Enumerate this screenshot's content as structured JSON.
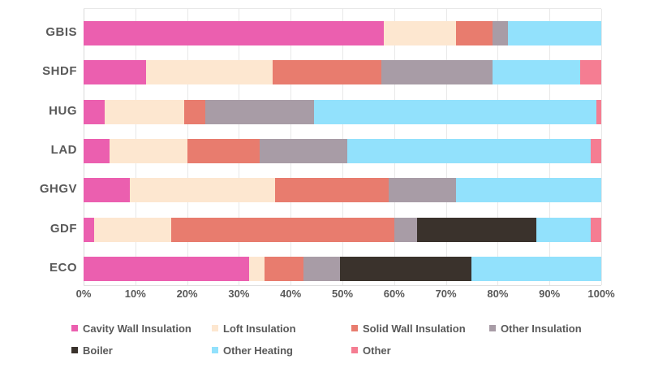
{
  "colors": {
    "background": "#FFFFFF",
    "axis_text": "#595959",
    "gridline": "#E8E8E8",
    "axis_line": "#D9D9D9"
  },
  "chart_data": {
    "type": "bar",
    "orientation": "horizontal",
    "stacked": true,
    "unit": "percent",
    "title": "",
    "xlabel": "",
    "ylabel": "",
    "grid": true,
    "xlim": [
      0,
      100
    ],
    "x_tick_step": 10,
    "x_tick_labels": [
      "0%",
      "10%",
      "20%",
      "30%",
      "40%",
      "50%",
      "60%",
      "70%",
      "80%",
      "90%",
      "100%"
    ],
    "categories": [
      "GBIS",
      "SHDF",
      "HUG",
      "LAD",
      "GHGV",
      "GDF",
      "ECO"
    ],
    "series": [
      {
        "name": "Cavity Wall Insulation",
        "color": "#EB5FAF",
        "values": [
          58,
          12,
          4,
          5,
          9,
          2,
          32
        ]
      },
      {
        "name": "Loft Insulation",
        "color": "#FDE7D0",
        "values": [
          14,
          24.5,
          15.5,
          15,
          28,
          15,
          3
        ]
      },
      {
        "name": "Solid Wall Insulation",
        "color": "#E87C6E",
        "values": [
          7,
          21,
          4,
          14,
          22,
          43,
          7.5
        ]
      },
      {
        "name": "Other Insulation",
        "color": "#A89CA6",
        "values": [
          3,
          21.5,
          21,
          17,
          13,
          4.5,
          7
        ]
      },
      {
        "name": "Boiler",
        "color": "#3A322C",
        "values": [
          0,
          0,
          0,
          0,
          0,
          23,
          25.5
        ]
      },
      {
        "name": "Other Heating",
        "color": "#92E1FC",
        "values": [
          18,
          17,
          54.5,
          47,
          28,
          10.5,
          25
        ]
      },
      {
        "name": "Other",
        "color": "#F57D92",
        "values": [
          0,
          4,
          1,
          2,
          0,
          2,
          0
        ]
      }
    ],
    "legend_position": "bottom",
    "legend_rows": [
      4,
      3
    ]
  }
}
